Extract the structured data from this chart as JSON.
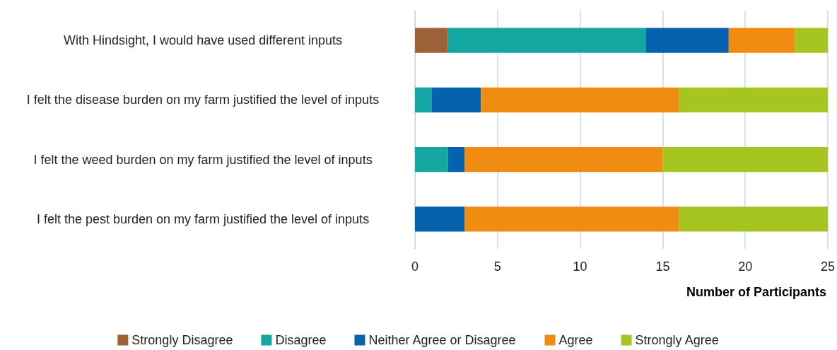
{
  "chart_data": {
    "type": "bar",
    "orientation": "horizontal",
    "stacked": true,
    "categories": [
      "With Hindsight, I would have used different inputs",
      "I felt the disease burden on my farm justified the level of inputs",
      "I felt the weed burden on my farm justified the level of inputs",
      "I felt the pest burden on my farm justified the level of inputs"
    ],
    "series": [
      {
        "name": "Strongly Disagree",
        "color": "#9c6137",
        "values": [
          2,
          0,
          0,
          0
        ]
      },
      {
        "name": "Disagree",
        "color": "#14a6a0",
        "values": [
          12,
          1,
          2,
          0
        ]
      },
      {
        "name": "Neither Agree or Disagree",
        "color": "#0563ae",
        "values": [
          5,
          3,
          1,
          3
        ]
      },
      {
        "name": "Agree",
        "color": "#f08c12",
        "values": [
          4,
          12,
          12,
          13
        ]
      },
      {
        "name": "Strongly Agree",
        "color": "#a7c520",
        "values": [
          2,
          9,
          10,
          9
        ]
      }
    ],
    "xlabel": "Number of Participants",
    "xlim": [
      0,
      25
    ],
    "xticks": [
      0,
      5,
      10,
      15,
      20,
      25
    ],
    "grid": "x",
    "legend": "bottom"
  }
}
